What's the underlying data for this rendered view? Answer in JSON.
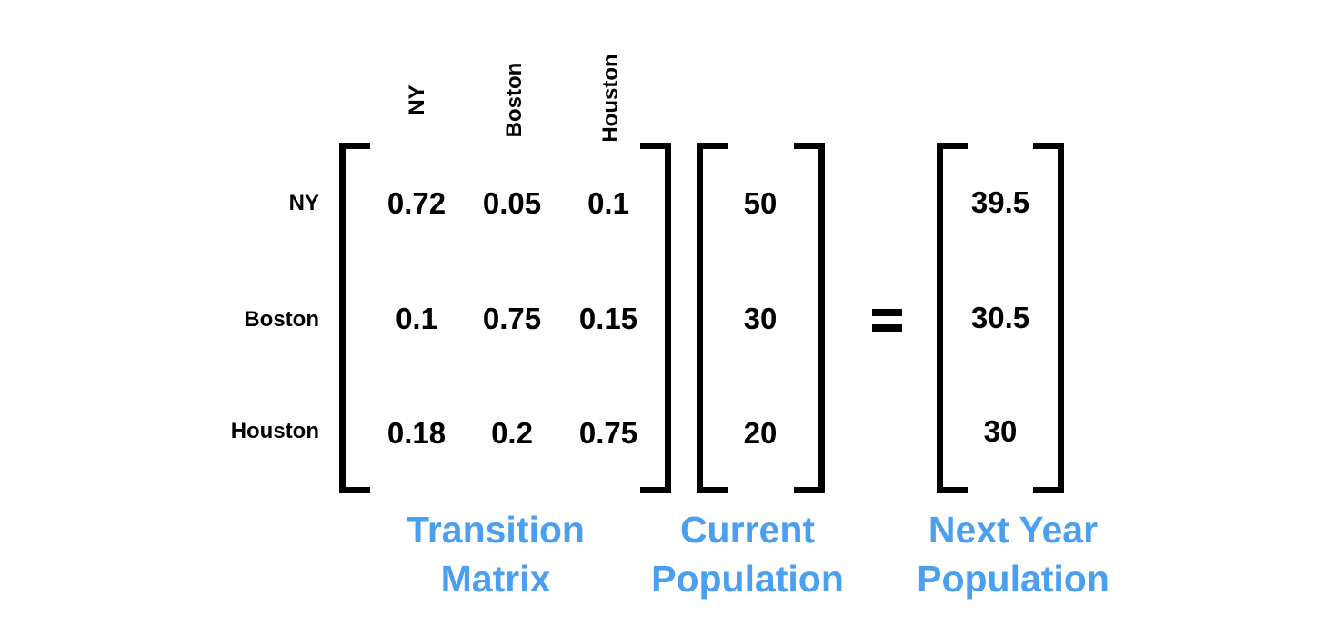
{
  "column_headers": [
    "NY",
    "Boston",
    "Houston"
  ],
  "row_headers": [
    "NY",
    "Boston",
    "Houston"
  ],
  "transition_matrix": [
    [
      "0.72",
      "0.05",
      "0.1"
    ],
    [
      "0.1",
      "0.75",
      "0.15"
    ],
    [
      "0.18",
      "0.2",
      "0.75"
    ]
  ],
  "current_population": [
    "50",
    "30",
    "20"
  ],
  "next_year_population": [
    "39.5",
    "30.5",
    "30"
  ],
  "captions": {
    "transition": {
      "line1": "Transition",
      "line2": "Matrix"
    },
    "current": {
      "line1": "Current",
      "line2": "Population"
    },
    "next_year": {
      "line1": "Next Year",
      "line2": "Population"
    }
  },
  "colors": {
    "caption": "#4a9ff0",
    "text": "#000000",
    "background": "#ffffff"
  }
}
